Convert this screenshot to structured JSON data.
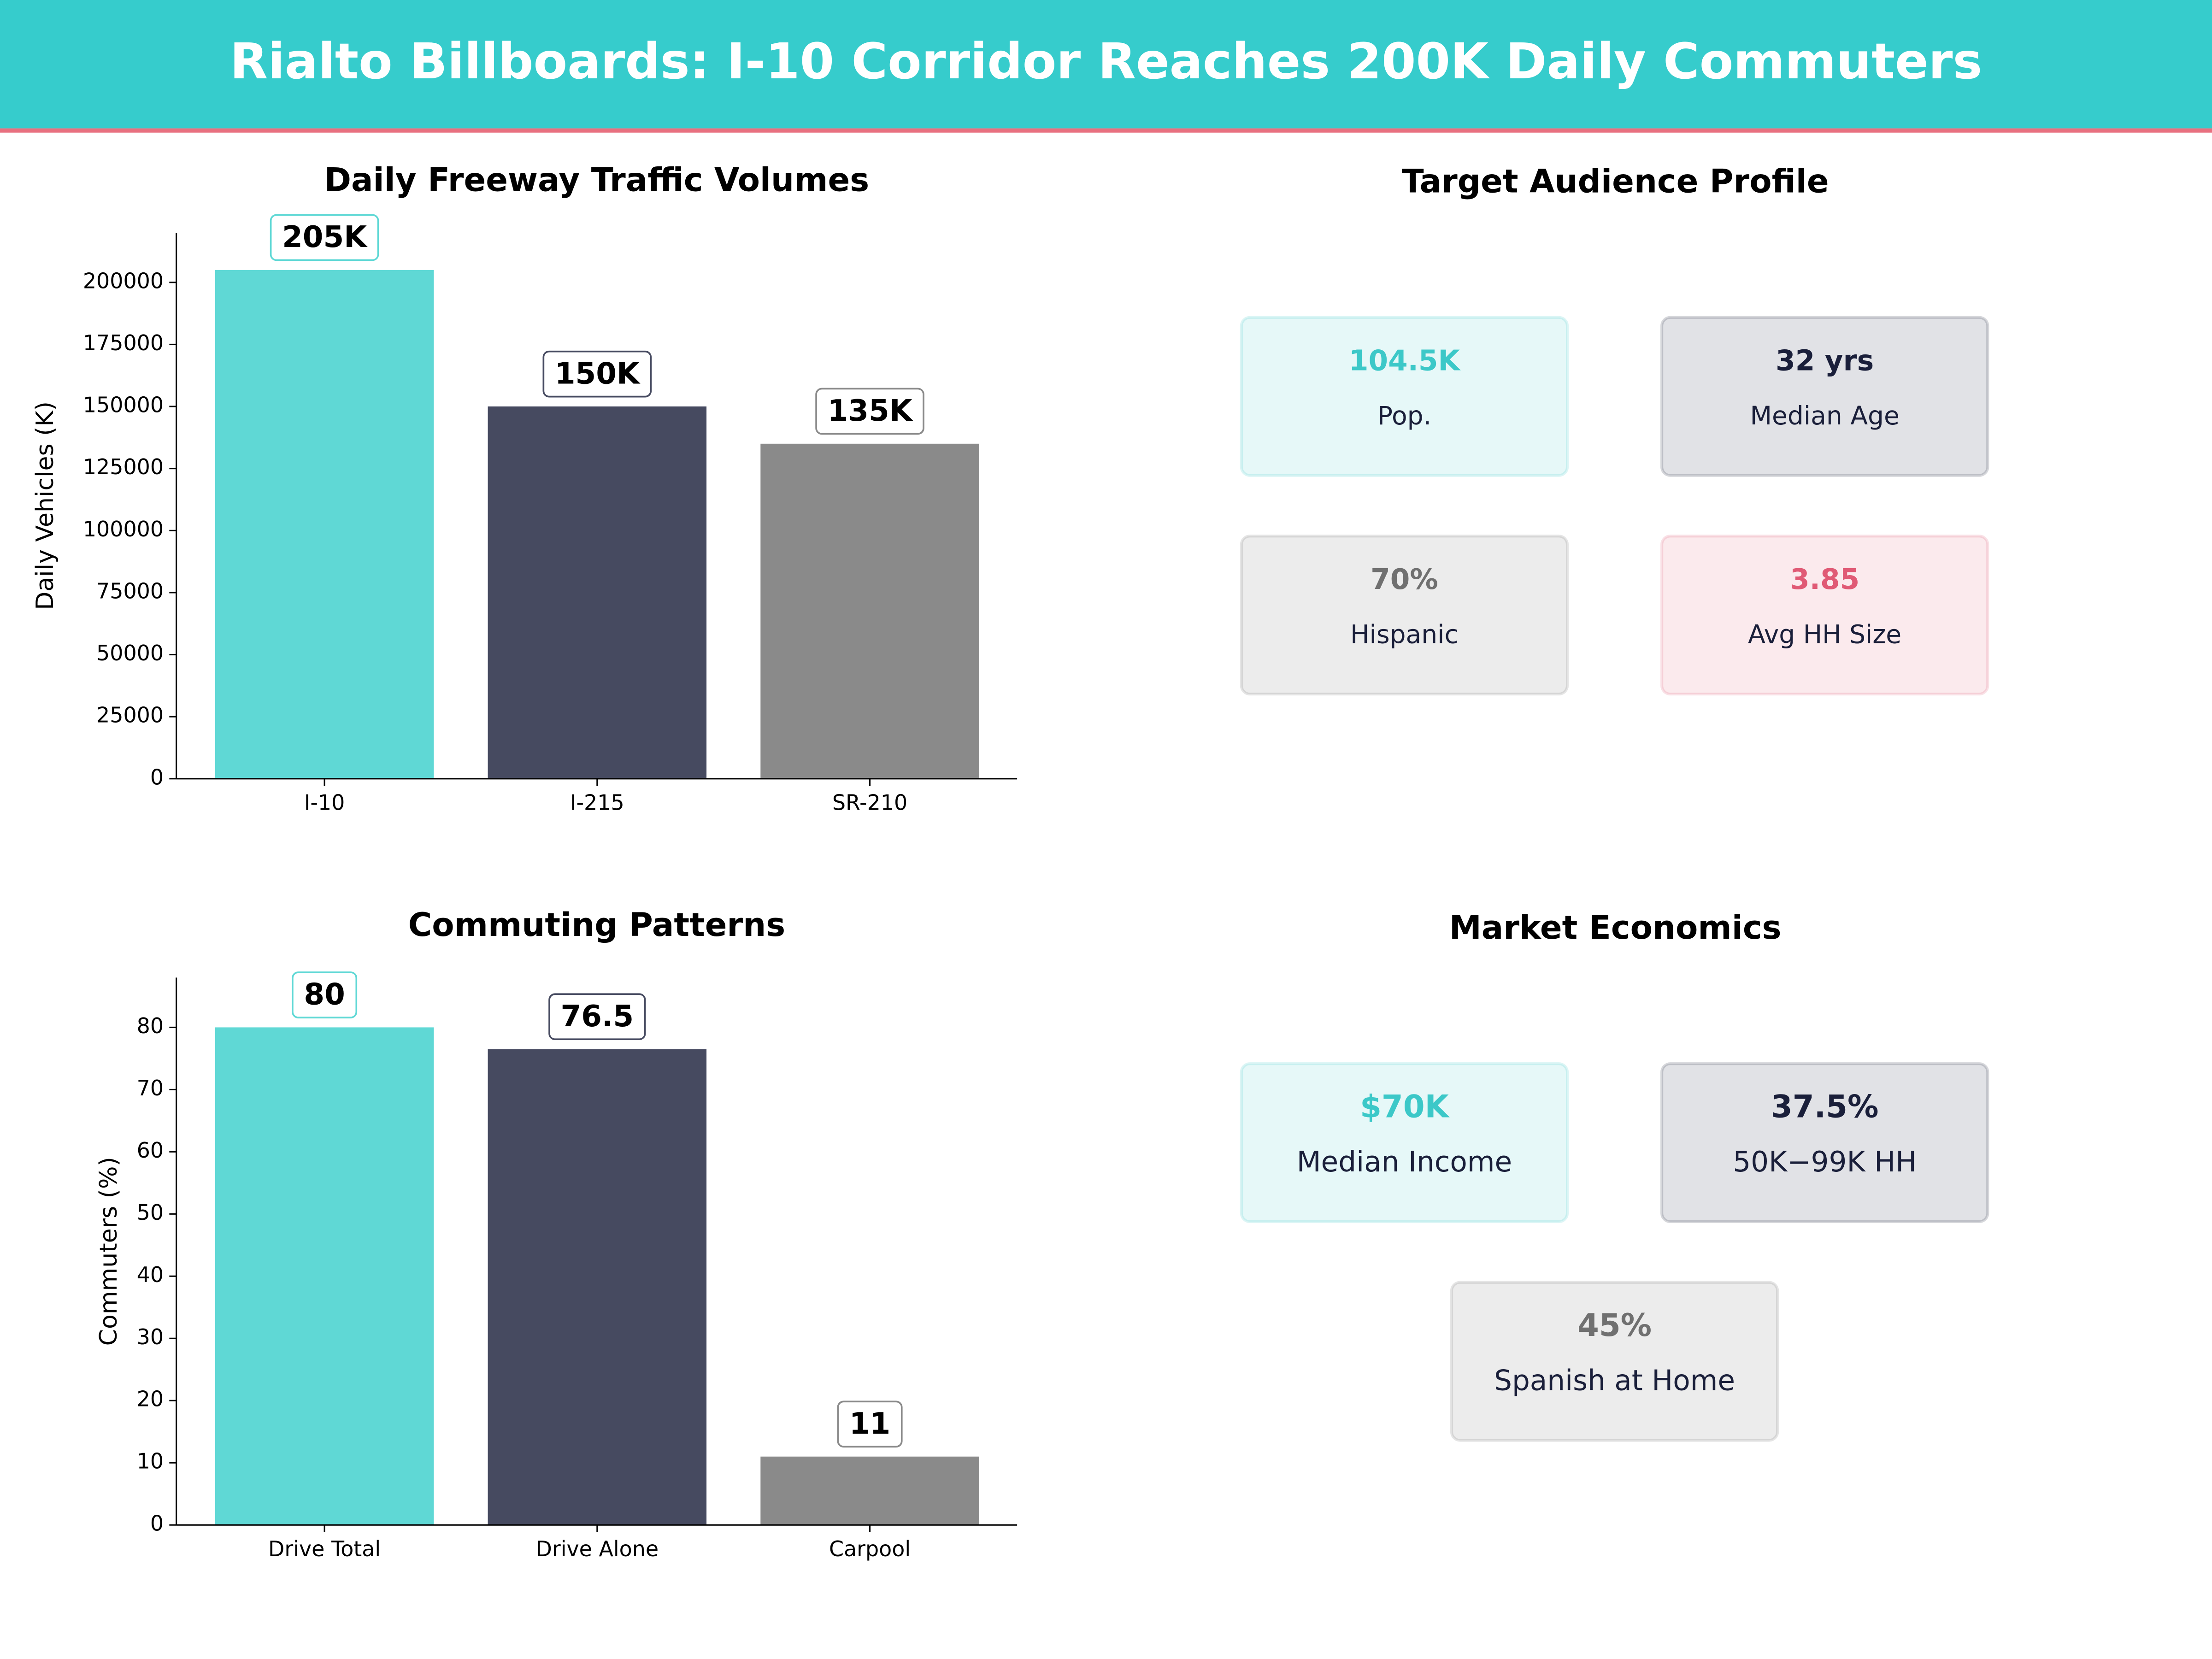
{
  "title": "Rialto Billboards: I-10 Corridor Reaches 200K Daily Commuters",
  "chart_data": [
    {
      "type": "bar",
      "title": "Daily Freeway Traffic Volumes",
      "ylabel": "Daily Vehicles (K)",
      "categories": [
        "I-10",
        "I-215",
        "SR-210"
      ],
      "values": [
        205000,
        150000,
        135000
      ],
      "value_labels": [
        "205K",
        "150K",
        "135K"
      ],
      "colors": [
        "#5fd8d5",
        "#464a60",
        "#8a8a8a"
      ],
      "ylim": [
        0,
        220000
      ],
      "yticks": [
        0,
        25000,
        50000,
        75000,
        100000,
        125000,
        150000,
        175000,
        200000
      ]
    },
    {
      "type": "bar",
      "title": "Commuting Patterns",
      "ylabel": "Commuters (%)",
      "categories": [
        "Drive Total",
        "Drive Alone",
        "Carpool"
      ],
      "values": [
        80,
        76.5,
        11
      ],
      "colors": [
        "#5fd8d5",
        "#464a60",
        "#8a8a8a"
      ],
      "ylim": [
        0,
        88
      ],
      "yticks": [
        0,
        10,
        20,
        30,
        40,
        50,
        60,
        70,
        80
      ]
    }
  ],
  "profile": {
    "title": "Target Audience Profile",
    "cards": [
      {
        "value": "104.5K",
        "label": "Pop.",
        "color": "#3cc8c8"
      },
      {
        "value": "32 yrs",
        "label": "Median Age",
        "color": "#1a1f3a"
      },
      {
        "value": "70%",
        "label": "Hispanic",
        "color": "#707070"
      },
      {
        "value": "3.85",
        "label": "Avg HH Size",
        "color": "#e05a75"
      }
    ]
  },
  "economics": {
    "title": "Market Economics",
    "cards": [
      {
        "value": "$70K",
        "label": "Median Income",
        "color": "#3cc8c8"
      },
      {
        "value": "37.5%",
        "label": "50K−99K HH",
        "color": "#1a1f3a"
      },
      {
        "value": "45%",
        "label": "Spanish at Home",
        "color": "#707070"
      }
    ]
  }
}
